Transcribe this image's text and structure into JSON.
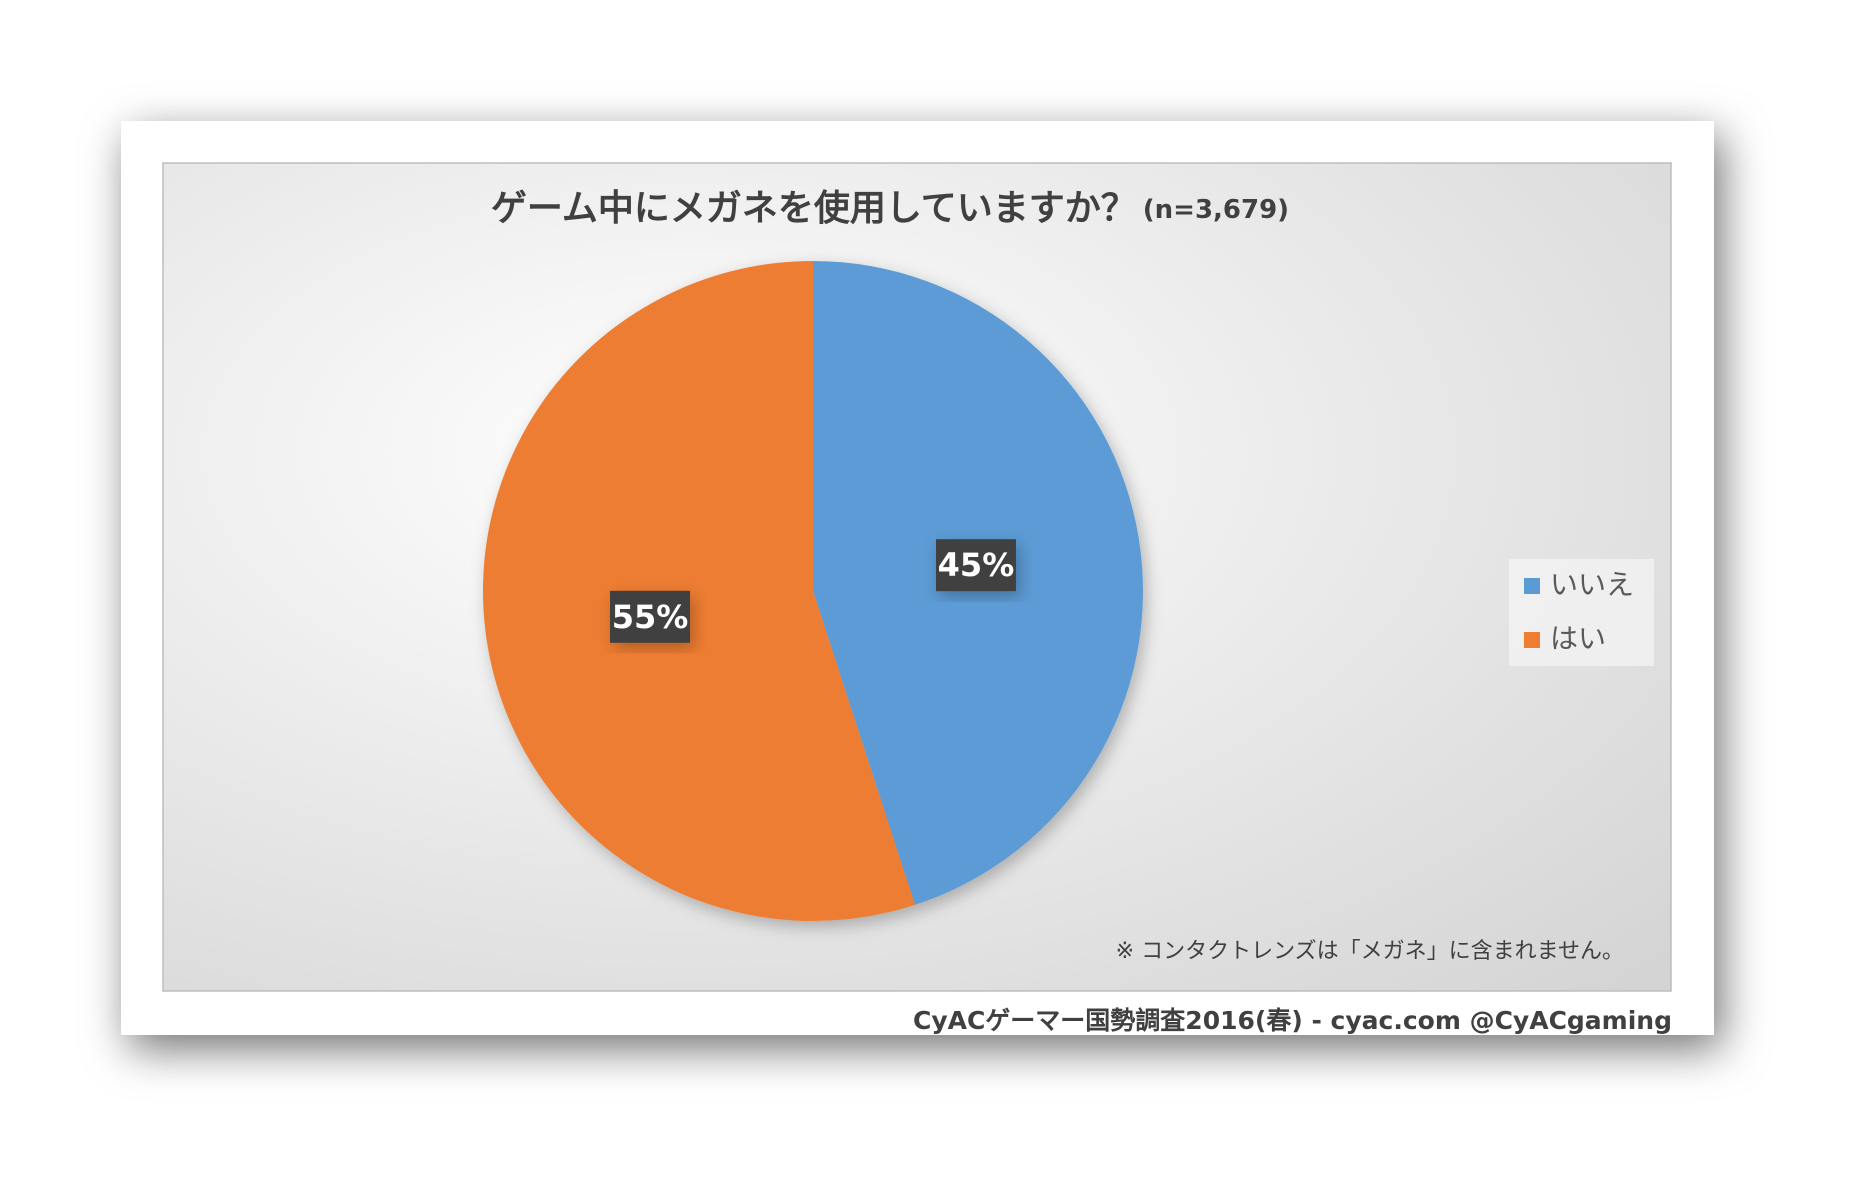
{
  "chart_data": {
    "type": "pie",
    "title": "ゲーム中にメガネを使用していますか？",
    "subtitle": "(n=3,679)",
    "categories": [
      "いいえ",
      "はい"
    ],
    "values": [
      45,
      55
    ],
    "value_labels": [
      "45%",
      "55%"
    ],
    "colors": [
      "#5b9bd5",
      "#ed7d31"
    ],
    "legend": "right",
    "annotation": "※ コンタクトレンズは「メガネ」に含まれません。",
    "source": "CyACゲーマー国勢調査2016(春) - cyac.com @CyACgaming"
  }
}
